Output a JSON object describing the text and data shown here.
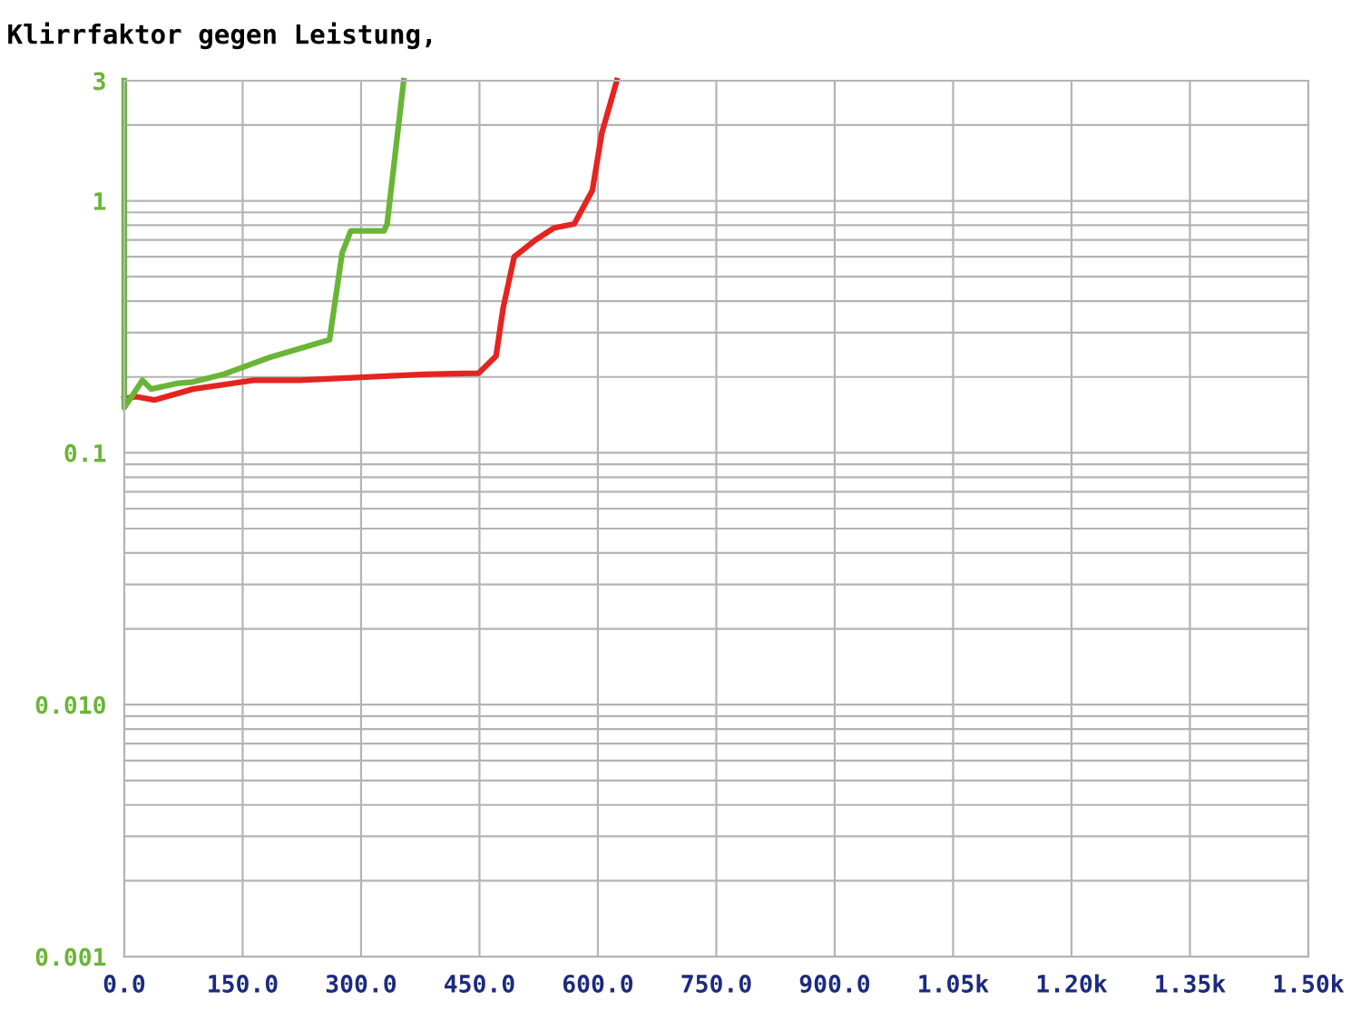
{
  "chart_data": {
    "type": "line",
    "title": "Klirrfaktor gegen Leistung,",
    "log": "y",
    "grid": true,
    "marker": "none",
    "line_style": "solid",
    "xlim": [
      0,
      1500
    ],
    "xticks": [
      {
        "value": 0,
        "label": "0.0"
      },
      {
        "value": 150,
        "label": "150.0"
      },
      {
        "value": 300,
        "label": "300.0"
      },
      {
        "value": 450,
        "label": "450.0"
      },
      {
        "value": 600,
        "label": "600.0"
      },
      {
        "value": 750,
        "label": "750.0"
      },
      {
        "value": 900,
        "label": "900.0"
      },
      {
        "value": 1050,
        "label": "1.05k"
      },
      {
        "value": 1200,
        "label": "1.20k"
      },
      {
        "value": 1350,
        "label": "1.35k"
      },
      {
        "value": 1500,
        "label": "1.50k"
      }
    ],
    "ylim": [
      0.001,
      3
    ],
    "yticks": [
      0.001,
      {
        "value": 0.01,
        "label": "0.010"
      },
      0.1,
      1,
      3
    ],
    "series": [
      {
        "color": "#e52420",
        "x": [
          0,
          15,
          38,
          87,
          164,
          222,
          379,
          449,
          471,
          480,
          494,
          521,
          544,
          570,
          593,
          605,
          624
        ],
        "values": [
          0.164,
          0.167,
          0.162,
          0.179,
          0.194,
          0.194,
          0.205,
          0.207,
          0.242,
          0.376,
          0.6,
          0.7,
          0.78,
          0.81,
          1.1,
          1.86,
          3
        ]
      },
      {
        "color": "#6ab536",
        "x": [
          0,
          0,
          23,
          34,
          69,
          87,
          126,
          184,
          260,
          276,
          287,
          329,
          333,
          354
        ],
        "values": [
          3,
          0.151,
          0.194,
          0.179,
          0.189,
          0.191,
          0.205,
          0.239,
          0.281,
          0.62,
          0.76,
          0.76,
          0.81,
          3
        ]
      }
    ]
  }
}
